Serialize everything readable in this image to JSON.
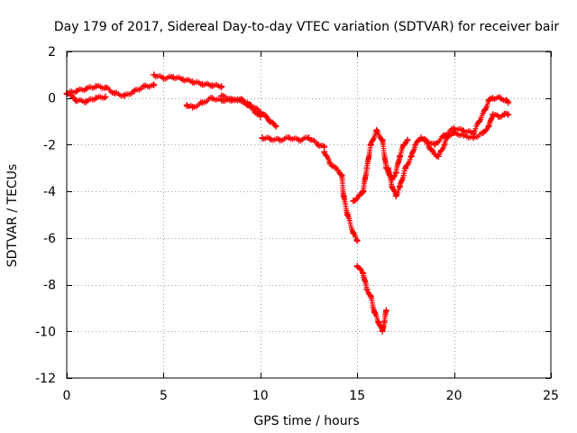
{
  "chart_data": {
    "type": "scatter",
    "title": "Day 179 of 2017, Sidereal Day-to-day VTEC variation (SDTVAR) for receiver bair",
    "xlabel": "GPS time / hours",
    "ylabel": "SDTVAR / TECUs",
    "xlim": [
      0,
      25
    ],
    "ylim": [
      -12,
      2
    ],
    "xticks": [
      0,
      5,
      10,
      15,
      20,
      25
    ],
    "xtick_labels": [
      "0",
      "5",
      "10",
      "15",
      "20",
      "25"
    ],
    "yticks": [
      2,
      0,
      -2,
      -4,
      -6,
      -8,
      -10,
      -12
    ],
    "ytick_labels": [
      "2",
      "0",
      "-2",
      "-4",
      "-6",
      "-8",
      "-10",
      "-12"
    ],
    "grid": true,
    "marker": "+",
    "series": [
      {
        "name": "SDTVAR",
        "color": "#ff0000",
        "segments": [
          [
            [
              0,
              0.2
            ],
            [
              0.5,
              0.3
            ],
            [
              1,
              0.4
            ],
            [
              1.5,
              0.5
            ],
            [
              2,
              0.45
            ],
            [
              2.5,
              0.2
            ],
            [
              3,
              0.1
            ],
            [
              3.5,
              0.3
            ],
            [
              4,
              0.5
            ],
            [
              4.5,
              0.55
            ]
          ],
          [
            [
              0.2,
              0.1
            ],
            [
              0.5,
              -0.1
            ],
            [
              1,
              -0.15
            ],
            [
              1.5,
              0.0
            ],
            [
              2,
              0.05
            ]
          ],
          [
            [
              4.5,
              1.0
            ],
            [
              5,
              0.85
            ],
            [
              5.5,
              0.9
            ],
            [
              6,
              0.8
            ],
            [
              6.5,
              0.7
            ],
            [
              7,
              0.6
            ],
            [
              7.5,
              0.55
            ],
            [
              8,
              0.5
            ]
          ],
          [
            [
              6.2,
              -0.3
            ],
            [
              6.5,
              -0.4
            ],
            [
              7,
              -0.2
            ],
            [
              7.5,
              0.0
            ],
            [
              8,
              -0.1
            ],
            [
              8.5,
              -0.05
            ],
            [
              9,
              -0.1
            ],
            [
              9.5,
              -0.3
            ],
            [
              10,
              -0.6
            ],
            [
              10.3,
              -0.8
            ],
            [
              10.5,
              -1.0
            ],
            [
              10.8,
              -1.2
            ]
          ],
          [
            [
              8,
              0.1
            ],
            [
              8.5,
              -0.1
            ],
            [
              9,
              -0.05
            ],
            [
              9.5,
              -0.4
            ],
            [
              10,
              -0.8
            ]
          ],
          [
            [
              10.1,
              -1.7
            ],
            [
              10.5,
              -1.75
            ],
            [
              11,
              -1.8
            ],
            [
              11.5,
              -1.7
            ],
            [
              12,
              -1.8
            ],
            [
              12.5,
              -1.7
            ],
            [
              13,
              -2.0
            ],
            [
              13.3,
              -2.1
            ]
          ],
          [
            [
              13.3,
              -2.3
            ],
            [
              13.6,
              -2.8
            ],
            [
              14,
              -3.1
            ],
            [
              14.2,
              -3.3
            ],
            [
              14.3,
              -4.2
            ],
            [
              14.5,
              -5.0
            ],
            [
              14.8,
              -5.8
            ],
            [
              15,
              -6.1
            ]
          ],
          [
            [
              15,
              -7.2
            ],
            [
              15.3,
              -7.5
            ],
            [
              15.5,
              -8.2
            ],
            [
              15.7,
              -8.5
            ],
            [
              15.9,
              -9.2
            ],
            [
              16.1,
              -9.6
            ],
            [
              16.3,
              -10.0
            ],
            [
              16.4,
              -9.6
            ],
            [
              16.5,
              -9.1
            ]
          ],
          [
            [
              14.8,
              -4.4
            ],
            [
              15,
              -4.3
            ],
            [
              15.3,
              -4.0
            ],
            [
              15.5,
              -3.0
            ],
            [
              15.7,
              -2.0
            ],
            [
              16,
              -1.4
            ],
            [
              16.3,
              -1.8
            ],
            [
              16.5,
              -3.0
            ],
            [
              16.8,
              -3.5
            ],
            [
              17,
              -3.2
            ],
            [
              17.2,
              -2.5
            ],
            [
              17.4,
              -2.0
            ],
            [
              17.6,
              -1.8
            ]
          ],
          [
            [
              16.6,
              -3.0
            ],
            [
              16.8,
              -3.8
            ],
            [
              17,
              -4.2
            ],
            [
              17.2,
              -3.8
            ],
            [
              17.5,
              -3.0
            ],
            [
              17.8,
              -2.5
            ],
            [
              18,
              -2.0
            ],
            [
              18.3,
              -1.7
            ],
            [
              18.5,
              -1.8
            ],
            [
              18.8,
              -2.2
            ],
            [
              19,
              -2.4
            ],
            [
              19.2,
              -2.5
            ],
            [
              19.5,
              -2.0
            ],
            [
              19.7,
              -1.6
            ],
            [
              20,
              -1.5
            ],
            [
              20.5,
              -1.6
            ],
            [
              21,
              -1.7
            ],
            [
              21.5,
              -1.5
            ],
            [
              21.8,
              -1.2
            ],
            [
              22,
              -0.7
            ],
            [
              22.3,
              -0.8
            ],
            [
              22.6,
              -0.7
            ],
            [
              22.8,
              -0.7
            ]
          ],
          [
            [
              18.5,
              -1.8
            ],
            [
              19,
              -2.0
            ],
            [
              19.5,
              -1.6
            ],
            [
              20,
              -1.3
            ],
            [
              20.5,
              -1.4
            ],
            [
              21,
              -1.5
            ],
            [
              21.3,
              -1.0
            ],
            [
              21.6,
              -0.5
            ],
            [
              21.8,
              -0.1
            ],
            [
              22,
              0.0
            ],
            [
              22.4,
              0.0
            ],
            [
              22.7,
              -0.1
            ],
            [
              22.8,
              -0.2
            ]
          ]
        ]
      }
    ]
  }
}
